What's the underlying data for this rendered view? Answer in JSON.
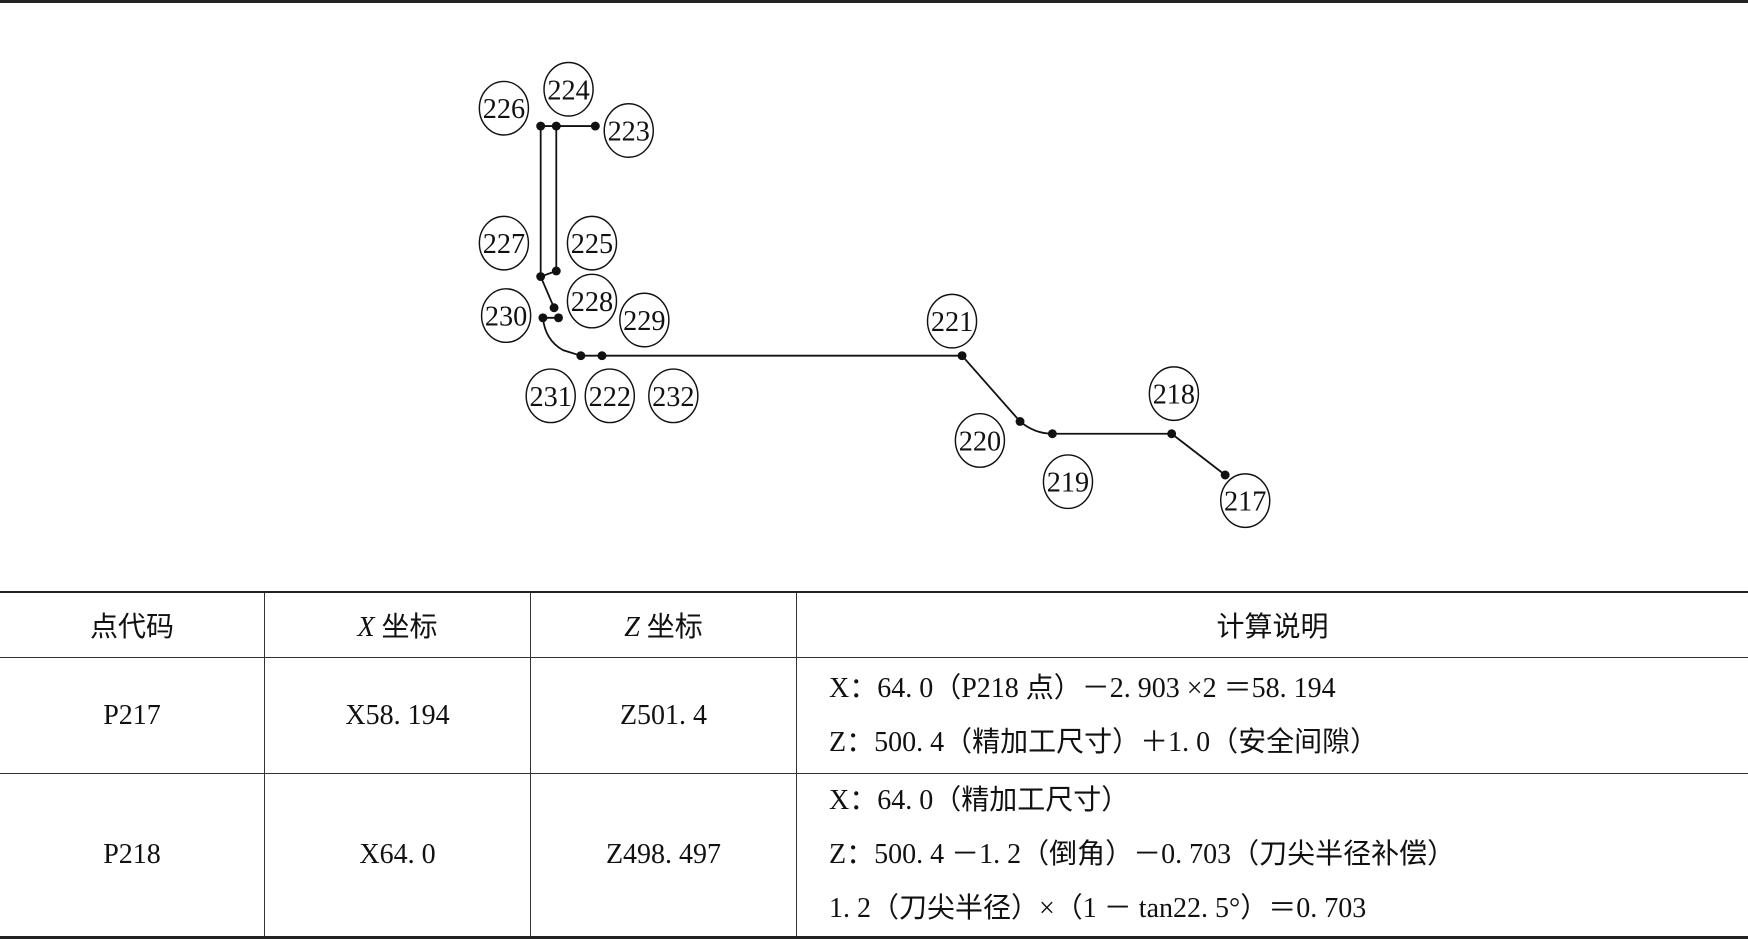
{
  "diagram": {
    "labels": [
      "217",
      "218",
      "219",
      "220",
      "221",
      "222",
      "223",
      "224",
      "225",
      "226",
      "227",
      "228",
      "229",
      "230",
      "231",
      "232"
    ]
  },
  "table": {
    "headers": {
      "point_code": "点代码",
      "x_axis": "X",
      "x_suffix": " 坐标",
      "z_axis": "Z",
      "z_suffix": " 坐标",
      "notes": "计算说明"
    },
    "rows": [
      {
        "code": "P217",
        "x": "X58. 194",
        "z": "Z501. 4",
        "notes": [
          "X：64. 0（P218 点）－2. 903 ×2 ＝58. 194",
          "Z：500. 4（精加工尺寸）＋1. 0（安全间隙）"
        ]
      },
      {
        "code": "P218",
        "x": "X64. 0",
        "z": "Z498. 497",
        "notes": [
          "X：64. 0（精加工尺寸）",
          "Z：500. 4 －1. 2（倒角）－0. 703（刀尖半径补偿）",
          "1. 2（刀尖半径）×（1 － tan22. 5°）＝0. 703"
        ]
      }
    ]
  }
}
